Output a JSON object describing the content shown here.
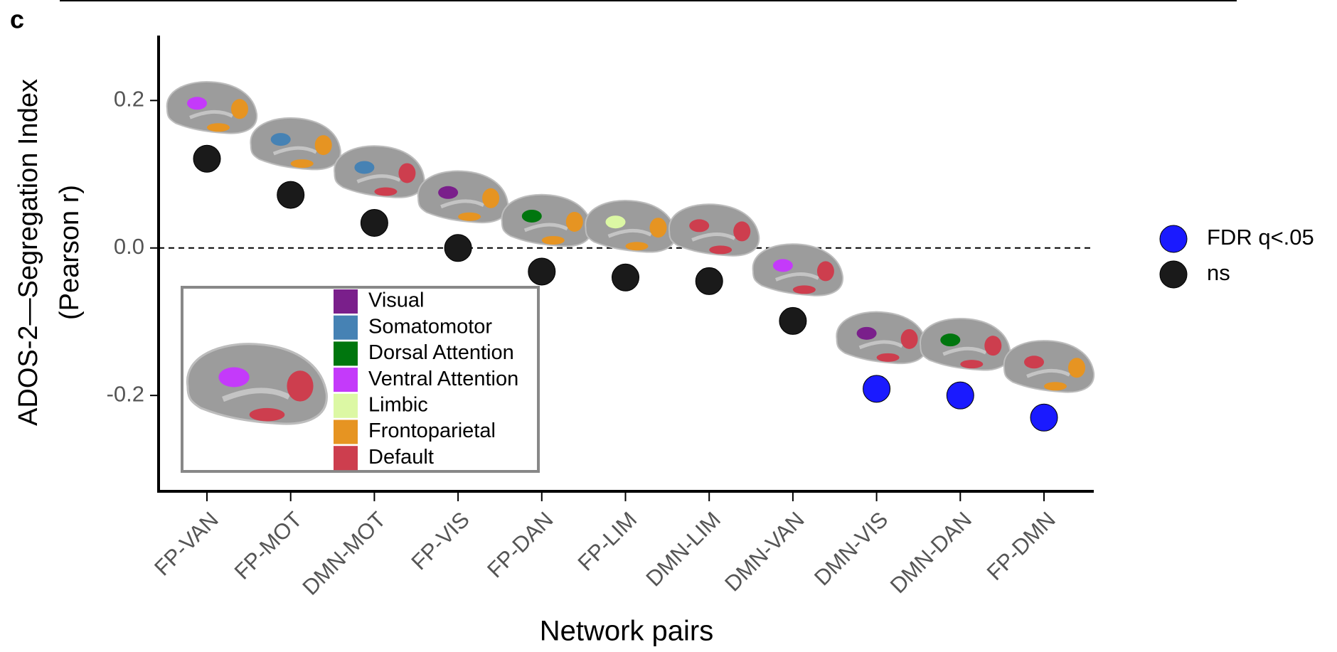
{
  "chart_data": {
    "type": "scatter",
    "panel_label": "c",
    "ylabel": [
      "ADOS-2—Segregation Index",
      "(Pearson r)"
    ],
    "xlabel": "Network pairs",
    "categories": [
      "FP-VAN",
      "FP-MOT",
      "DMN-MOT",
      "FP-VIS",
      "FP-DAN",
      "FP-LIM",
      "DMN-LIM",
      "DMN-VAN",
      "DMN-VIS",
      "DMN-DAN",
      "FP-DMN"
    ],
    "series": [
      {
        "name": "FDR q<.05",
        "color": "#1a1aff",
        "values": [
          null,
          null,
          null,
          null,
          null,
          null,
          null,
          null,
          -0.191,
          -0.2,
          -0.23
        ]
      },
      {
        "name": "ns",
        "color": "#1a1a1a",
        "values": [
          0.121,
          0.072,
          0.034,
          0.0,
          -0.032,
          -0.04,
          -0.045,
          -0.099,
          null,
          null,
          null
        ]
      }
    ],
    "ylim": [
      -0.33,
      0.29
    ],
    "yticks": [
      0.2,
      {
        "value": 0,
        "label": "0.0"
      },
      -0.2
    ],
    "reference_line": 0,
    "network_legend": [
      {
        "name": "Visual",
        "color": "#7a1f8b"
      },
      {
        "name": "Somatomotor",
        "color": "#4682b4"
      },
      {
        "name": "Dorsal Attention",
        "color": "#00760e"
      },
      {
        "name": "Ventral Attention",
        "color": "#c43afa"
      },
      {
        "name": "Limbic",
        "color": "#dcf8a4"
      },
      {
        "name": "Frontoparietal",
        "color": "#e69422"
      },
      {
        "name": "Default",
        "color": "#cd3e4e"
      }
    ]
  }
}
